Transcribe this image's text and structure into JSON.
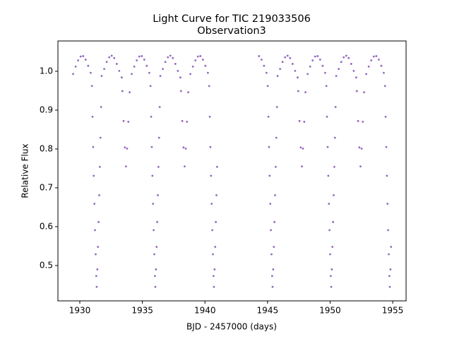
{
  "chart_data": {
    "type": "scatter",
    "title": "Light Curve for TIC 219033506",
    "subtitle": "Observation3",
    "x_label": "BJD - 2457000 (days)",
    "y_label": "Relative Flux",
    "color": "#9467bd",
    "xlim": [
      1928.25,
      1956.07
    ],
    "ylim": [
      0.409,
      1.078
    ],
    "xticks": [
      1930,
      1935,
      1940,
      1945,
      1950,
      1955
    ],
    "yticks": [
      0.5,
      0.6,
      0.7,
      0.8,
      0.9,
      {
        "value": 1,
        "label": "1.0"
      }
    ],
    "x": [
      1929.466,
      1929.666,
      1929.866,
      1930.066,
      1930.266,
      1930.466,
      1930.666,
      1930.866,
      1930.966,
      1931.016,
      1931.066,
      1931.116,
      1931.166,
      1931.216,
      1931.266,
      1931.316,
      1931.35,
      1931.4,
      1931.45,
      1931.5,
      1931.55,
      1931.6,
      1931.65,
      1931.7,
      1931.75,
      1931.95,
      1932.15,
      1932.35,
      1932.55,
      1932.75,
      1932.95,
      1933.15,
      1933.35,
      1933.4,
      1933.5,
      1933.6,
      1933.69,
      1933.78,
      1933.88,
      1933.98,
      1934.15,
      1934.35,
      1934.55,
      1934.75,
      1934.95,
      1935.15,
      1935.35,
      1935.55,
      1935.65,
      1935.7,
      1935.75,
      1935.8,
      1935.85,
      1935.9,
      1935.95,
      1936.0,
      1936.034,
      1936.084,
      1936.134,
      1936.184,
      1936.234,
      1936.284,
      1936.334,
      1936.384,
      1936.434,
      1936.634,
      1936.834,
      1937.034,
      1937.234,
      1937.434,
      1937.634,
      1937.834,
      1938.034,
      1938.084,
      1938.184,
      1938.284,
      1938.374,
      1938.464,
      1938.564,
      1938.664,
      1938.834,
      1939.034,
      1939.234,
      1939.434,
      1939.634,
      1939.834,
      1940.034,
      1940.234,
      1940.334,
      1940.384,
      1940.434,
      1940.484,
      1940.534,
      1940.584,
      1940.634,
      1940.684,
      1940.718,
      1940.768,
      1940.818,
      1940.868,
      1940.918,
      1940.968,
      1944.318,
      1944.518,
      1944.718,
      1944.918,
      1945.018,
      1945.068,
      1945.118,
      1945.168,
      1945.218,
      1945.268,
      1945.318,
      1945.368,
      1945.402,
      1945.452,
      1945.502,
      1945.552,
      1945.602,
      1945.652,
      1945.702,
      1945.752,
      1945.802,
      1946.002,
      1946.202,
      1946.402,
      1946.602,
      1946.802,
      1947.002,
      1947.202,
      1947.402,
      1947.452,
      1947.552,
      1947.652,
      1947.742,
      1947.832,
      1947.932,
      1948.032,
      1948.202,
      1948.402,
      1948.602,
      1948.802,
      1949.002,
      1949.202,
      1949.402,
      1949.602,
      1949.702,
      1949.752,
      1949.802,
      1949.852,
      1949.902,
      1949.952,
      1950.002,
      1950.052,
      1950.086,
      1950.136,
      1950.186,
      1950.236,
      1950.286,
      1950.336,
      1950.386,
      1950.436,
      1950.486,
      1950.686,
      1950.886,
      1951.086,
      1951.286,
      1951.486,
      1951.686,
      1951.886,
      1952.086,
      1952.136,
      1952.236,
      1952.336,
      1952.426,
      1952.516,
      1952.616,
      1952.716,
      1952.886,
      1953.086,
      1953.286,
      1953.486,
      1953.686,
      1953.886,
      1954.086,
      1954.286,
      1954.386,
      1954.436,
      1954.486,
      1954.536,
      1954.586,
      1954.636,
      1954.686,
      1954.736,
      1954.77,
      1954.82,
      1954.87
    ],
    "values": [
      0.993,
      1.012,
      1.028,
      1.038,
      1.039,
      1.03,
      1.014,
      0.996,
      0.962,
      0.883,
      0.805,
      0.731,
      0.659,
      0.591,
      0.529,
      0.473,
      0.445,
      0.49,
      0.548,
      0.612,
      0.681,
      0.754,
      0.829,
      0.908,
      0.988,
      1.006,
      1.024,
      1.036,
      1.04,
      1.034,
      1.019,
      1.001,
      0.984,
      0.949,
      0.872,
      0.804,
      0.755,
      0.801,
      0.87,
      0.946,
      0.993,
      1.012,
      1.028,
      1.038,
      1.039,
      1.03,
      1.014,
      0.996,
      0.962,
      0.883,
      0.805,
      0.731,
      0.659,
      0.591,
      0.529,
      0.473,
      0.445,
      0.49,
      0.548,
      0.612,
      0.681,
      0.754,
      0.829,
      0.908,
      0.988,
      1.006,
      1.024,
      1.036,
      1.04,
      1.034,
      1.019,
      1.001,
      0.984,
      0.949,
      0.872,
      0.804,
      0.755,
      0.801,
      0.87,
      0.946,
      0.993,
      1.012,
      1.028,
      1.038,
      1.039,
      1.03,
      1.014,
      0.996,
      0.962,
      0.883,
      0.805,
      0.731,
      0.659,
      0.591,
      0.529,
      0.473,
      0.445,
      0.49,
      0.548,
      0.612,
      0.681,
      0.754,
      1.039,
      1.03,
      1.014,
      0.996,
      0.962,
      0.883,
      0.805,
      0.731,
      0.659,
      0.591,
      0.529,
      0.473,
      0.445,
      0.49,
      0.548,
      0.612,
      0.681,
      0.754,
      0.829,
      0.908,
      0.988,
      1.006,
      1.024,
      1.036,
      1.04,
      1.034,
      1.019,
      1.001,
      0.984,
      0.949,
      0.872,
      0.804,
      0.755,
      0.801,
      0.87,
      0.946,
      0.993,
      1.012,
      1.028,
      1.038,
      1.039,
      1.03,
      1.014,
      0.996,
      0.962,
      0.883,
      0.805,
      0.731,
      0.659,
      0.591,
      0.529,
      0.473,
      0.445,
      0.49,
      0.548,
      0.612,
      0.681,
      0.754,
      0.829,
      0.908,
      0.988,
      1.006,
      1.024,
      1.036,
      1.04,
      1.034,
      1.019,
      1.001,
      0.984,
      0.949,
      0.872,
      0.804,
      0.755,
      0.801,
      0.87,
      0.946,
      0.993,
      1.012,
      1.028,
      1.038,
      1.039,
      1.03,
      1.014,
      0.996,
      0.962,
      0.883,
      0.805,
      0.731,
      0.659,
      0.591,
      0.529,
      0.473,
      0.445,
      0.49,
      0.548
    ]
  }
}
